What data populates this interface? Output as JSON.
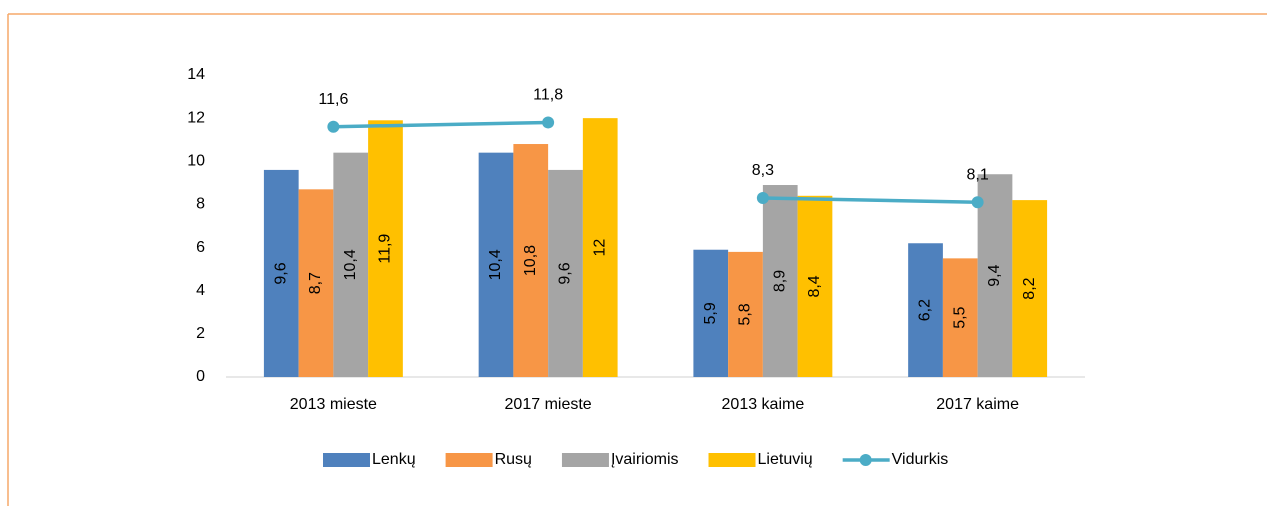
{
  "chart_data": {
    "type": "bar",
    "categories": [
      "2013 mieste",
      "2017 mieste",
      "2013 kaime",
      "2017 kaime"
    ],
    "series": [
      {
        "name": "Lenkų",
        "color": "#4f81bd",
        "values": [
          9.6,
          10.4,
          5.9,
          6.2
        ],
        "value_labels": [
          "9,6",
          "10,4",
          "5,9",
          "6,2"
        ]
      },
      {
        "name": "Rusų",
        "color": "#f79646",
        "values": [
          8.7,
          10.8,
          5.8,
          5.5
        ],
        "value_labels": [
          "8,7",
          "10,8",
          "5,8",
          "5,5"
        ]
      },
      {
        "name": "Įvairiomis",
        "color": "#a5a5a5",
        "values": [
          10.4,
          9.6,
          8.9,
          9.4
        ],
        "value_labels": [
          "10,4",
          "9,6",
          "8,9",
          "9,4"
        ]
      },
      {
        "name": "Lietuvių",
        "color": "#ffc000",
        "values": [
          11.9,
          12,
          8.4,
          8.2
        ],
        "value_labels": [
          "11,9",
          "12",
          "8,4",
          "8,2"
        ]
      },
      {
        "name": "Vidurkis",
        "type": "line",
        "color": "#4bacc6",
        "values": [
          11.6,
          11.8,
          8.3,
          8.1
        ],
        "value_labels": [
          "11,6",
          "11,8",
          "8,3",
          "8,1"
        ],
        "break_after": [
          1
        ]
      }
    ],
    "ylim": [
      0,
      14
    ],
    "yticks": [
      0,
      2,
      4,
      6,
      8,
      10,
      12,
      14
    ],
    "grid": false,
    "legend": "bottom"
  }
}
